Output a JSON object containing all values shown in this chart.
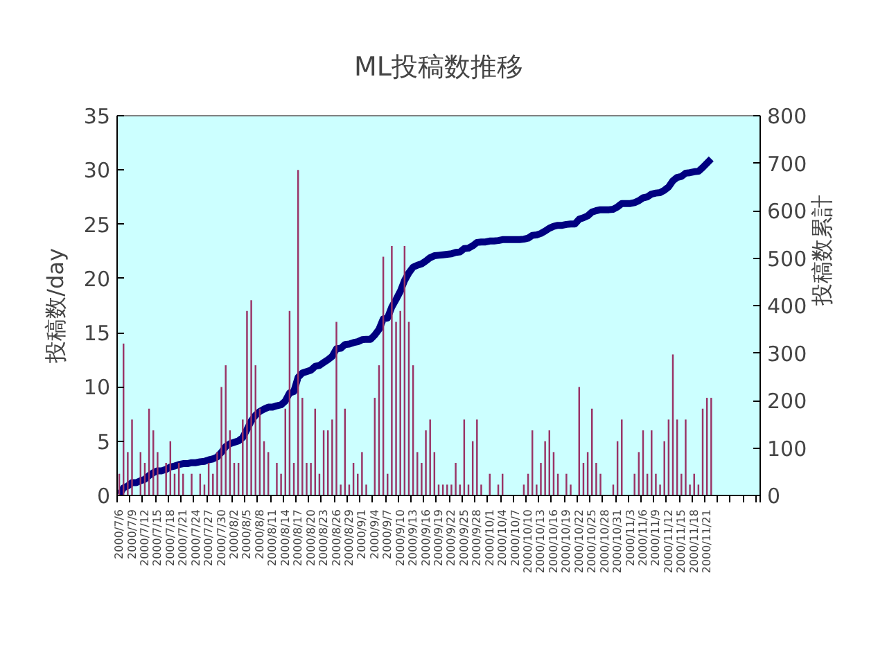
{
  "chart_data": {
    "type": "bar",
    "title": "ML投稿数推移",
    "ylabel": "投稿数/day",
    "y2label": "投稿数累計",
    "categories": [
      "2000/7/6",
      null,
      null,
      "2000/7/9",
      null,
      null,
      "2000/7/12",
      null,
      null,
      "2000/7/15",
      null,
      null,
      "2000/7/18",
      null,
      null,
      "2000/7/21",
      null,
      null,
      "2000/7/24",
      null,
      null,
      "2000/7/27",
      null,
      null,
      "2000/7/30",
      null,
      null,
      "2000/8/2",
      null,
      null,
      "2000/8/5",
      null,
      null,
      "2000/8/8",
      null,
      null,
      "2000/8/11",
      null,
      null,
      "2000/8/14",
      null,
      null,
      "2000/8/17",
      null,
      null,
      "2000/8/20",
      null,
      null,
      "2000/8/23",
      null,
      null,
      "2000/8/26",
      null,
      null,
      "2000/8/29",
      null,
      null,
      "2000/9/1",
      null,
      null,
      "2000/9/4",
      null,
      null,
      "2000/9/7",
      null,
      null,
      "2000/9/10",
      null,
      null,
      "2000/9/13",
      null,
      null,
      "2000/9/16",
      null,
      null,
      "2000/9/19",
      null,
      null,
      "2000/9/22",
      null,
      null,
      "2000/9/25",
      null,
      null,
      "2000/9/28",
      null,
      null,
      "2000/10/1",
      null,
      null,
      "2000/10/4",
      null,
      null,
      "2000/10/7",
      null,
      null,
      "2000/10/10",
      null,
      null,
      "2000/10/13",
      null,
      null,
      "2000/10/16",
      null,
      null,
      "2000/10/19",
      null,
      null,
      "2000/10/22",
      null,
      null,
      "2000/10/25",
      null,
      null,
      "2000/10/28",
      null,
      null,
      "2000/10/31",
      null,
      null,
      "2000/11/3",
      null,
      null,
      "2000/11/6",
      null,
      null,
      "2000/11/9",
      null,
      null,
      "2000/11/12",
      null,
      null,
      "2000/11/15",
      null,
      null,
      "2000/11/18",
      null,
      null,
      "2000/11/21",
      null,
      null,
      null,
      null,
      null,
      null,
      null,
      null,
      null,
      null,
      null,
      null
    ],
    "series": [
      {
        "color": "#993366",
        "values": [
          2,
          14,
          4,
          7,
          0,
          4,
          3,
          8,
          6,
          4,
          0,
          3,
          5,
          2,
          3,
          2,
          0,
          2,
          0,
          2,
          1,
          3,
          2,
          4,
          10,
          12,
          6,
          3,
          3,
          7,
          17,
          18,
          12,
          8,
          5,
          4,
          0,
          3,
          2,
          8,
          17,
          3,
          30,
          9,
          3,
          3,
          8,
          2,
          6,
          6,
          7,
          16,
          1,
          8,
          1,
          3,
          2,
          4,
          1,
          0,
          9,
          12,
          22,
          2,
          23,
          16,
          17,
          23,
          16,
          12,
          4,
          3,
          6,
          7,
          4,
          1,
          1,
          1,
          1,
          3,
          1,
          7,
          1,
          5,
          7,
          1,
          0,
          2,
          0,
          1,
          2,
          0,
          0,
          0,
          0,
          1,
          2,
          6,
          1,
          3,
          5,
          6,
          4,
          2,
          0,
          2,
          1,
          0,
          10,
          3,
          4,
          8,
          3,
          2,
          0,
          0,
          1,
          5,
          7,
          0,
          0,
          2,
          4,
          6,
          2,
          6,
          2,
          1,
          5,
          7,
          13,
          7,
          2,
          7,
          1,
          2,
          1,
          8,
          9,
          9,
          null,
          null,
          null,
          null,
          null,
          null,
          null,
          null,
          null,
          null,
          null
        ]
      },
      {
        "type": "line",
        "axis": "y2",
        "color": "#000080",
        "values": [
          2,
          16,
          20,
          27,
          27,
          31,
          34,
          42,
          48,
          52,
          52,
          55,
          60,
          62,
          65,
          67,
          67,
          69,
          69,
          71,
          72,
          75,
          77,
          81,
          91,
          103,
          109,
          112,
          115,
          122,
          139,
          157,
          169,
          177,
          182,
          186,
          186,
          189,
          191,
          199,
          216,
          219,
          249,
          258,
          261,
          264,
          272,
          274,
          280,
          286,
          293,
          309,
          310,
          318,
          319,
          322,
          324,
          328,
          329,
          329,
          338,
          350,
          372,
          374,
          397,
          413,
          430,
          453,
          469,
          481,
          485,
          488,
          494,
          501,
          505,
          506,
          507,
          508,
          509,
          512,
          513,
          520,
          521,
          526,
          533,
          534,
          534,
          536,
          536,
          537,
          539,
          539,
          539,
          539,
          539,
          540,
          542,
          548,
          549,
          552,
          557,
          563,
          567,
          569,
          569,
          571,
          572,
          572,
          582,
          585,
          589,
          597,
          600,
          602,
          602,
          602,
          603,
          608,
          615,
          615,
          615,
          617,
          621,
          627,
          629,
          635,
          637,
          638,
          643,
          650,
          663,
          670,
          672,
          679,
          680,
          682,
          683,
          691,
          700,
          709,
          null,
          null,
          null,
          null,
          null,
          null,
          null,
          null,
          null,
          null,
          null
        ]
      }
    ],
    "ylim": [
      0,
      35
    ],
    "yticks": [
      0,
      5,
      10,
      15,
      20,
      25,
      30,
      35
    ],
    "y2lim": [
      0,
      800
    ],
    "y2ticks": [
      0,
      100,
      200,
      300,
      400,
      500,
      600,
      700,
      800
    ]
  }
}
